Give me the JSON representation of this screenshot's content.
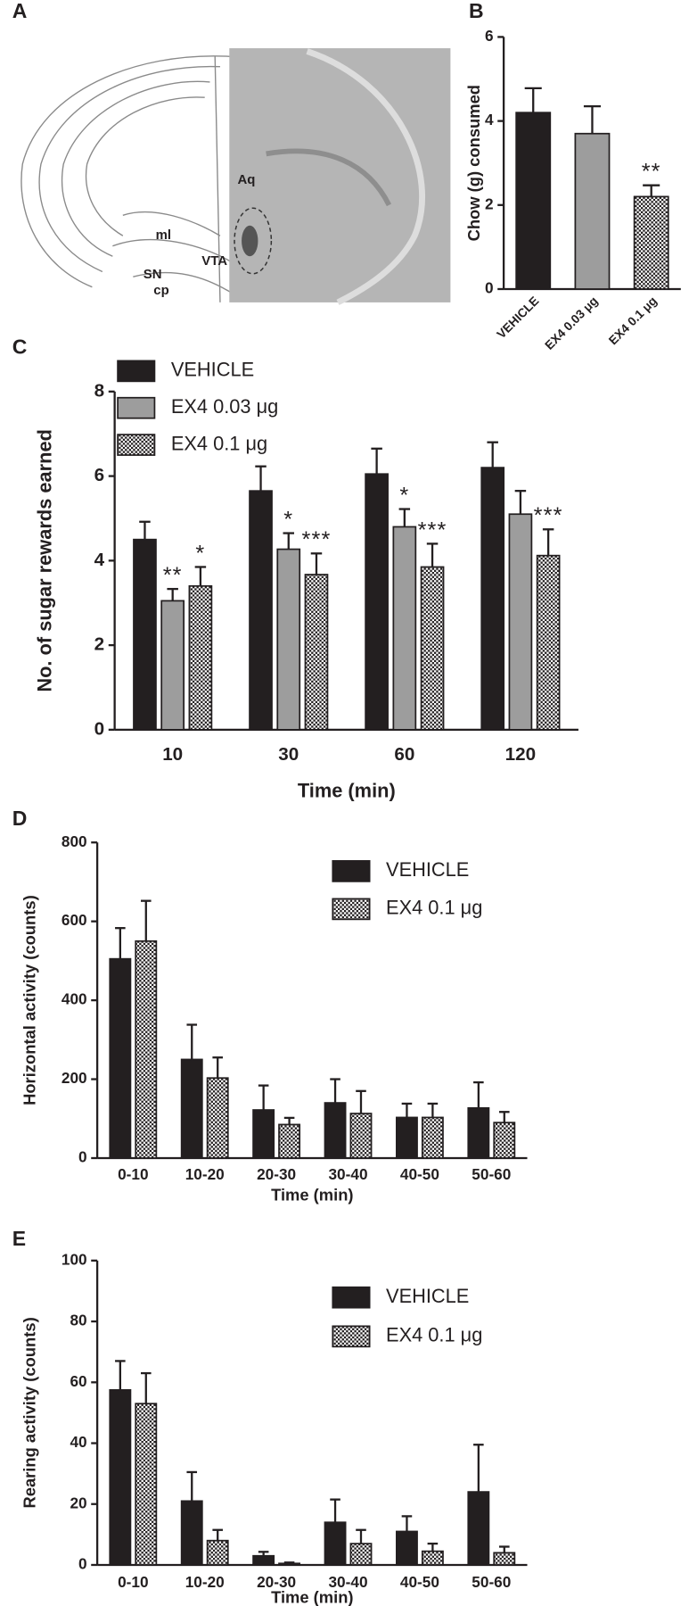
{
  "panel_a": {
    "panel": "A",
    "labels": [
      "Aq",
      "ml",
      "VTA",
      "SN",
      "cp"
    ]
  },
  "chart_data": [
    {
      "type": "bar",
      "panel": "B",
      "y_label": "Chow (g) consumed",
      "categories": [
        "VEHICLE",
        "EX4 0.03 μg",
        "EX4 0.1 μg"
      ],
      "values": [
        4.2,
        3.7,
        2.2
      ],
      "errors": [
        0.58,
        0.65,
        0.27
      ],
      "colors": [
        "#231f20",
        "#9d9d9d",
        "#ffffff"
      ],
      "patterns": [
        null,
        null,
        "checker"
      ],
      "annotations": [
        null,
        null,
        "**"
      ],
      "ylim": [
        0,
        6
      ],
      "yticks": [
        0,
        2,
        4,
        6
      ]
    },
    {
      "type": "bar",
      "panel": "C",
      "y_label": "No. of sugar rewards earned",
      "x_label": "Time (min)",
      "categories": [
        "10",
        "30",
        "60",
        "120"
      ],
      "legend": "upper-left",
      "series": [
        {
          "name": "VEHICLE",
          "color": "#231f20",
          "pattern": null,
          "values": [
            4.5,
            5.65,
            6.05,
            6.2
          ],
          "errors": [
            0.42,
            0.58,
            0.6,
            0.6
          ],
          "annotations": [
            null,
            null,
            null,
            null
          ]
        },
        {
          "name": "EX4 0.03 μg",
          "color": "#9d9d9d",
          "pattern": null,
          "values": [
            3.05,
            4.27,
            4.8,
            5.1
          ],
          "errors": [
            0.28,
            0.38,
            0.42,
            0.55
          ],
          "annotations": [
            "**",
            "*",
            "*",
            null
          ]
        },
        {
          "name": "EX4 0.1 μg",
          "color": "#ffffff",
          "pattern": "checker",
          "values": [
            3.4,
            3.67,
            3.85,
            4.12
          ],
          "errors": [
            0.45,
            0.5,
            0.55,
            0.62
          ],
          "annotations": [
            "*",
            "***",
            "***",
            "***"
          ]
        }
      ],
      "ylim": [
        0,
        8
      ],
      "yticks": [
        0,
        2,
        4,
        6,
        8
      ]
    },
    {
      "type": "bar",
      "panel": "D",
      "y_label": "Horizontal activity (counts)",
      "x_label": "Time (min)",
      "categories": [
        "0-10",
        "10-20",
        "20-30",
        "30-40",
        "40-50",
        "50-60"
      ],
      "legend": "upper-right",
      "series": [
        {
          "name": "VEHICLE",
          "color": "#231f20",
          "pattern": null,
          "values": [
            505,
            250,
            122,
            140,
            103,
            127
          ],
          "errors": [
            78,
            88,
            62,
            60,
            35,
            65
          ]
        },
        {
          "name": "EX4 0.1 μg",
          "color": "#ffffff",
          "pattern": "checker",
          "values": [
            550,
            203,
            85,
            113,
            103,
            90
          ],
          "errors": [
            102,
            52,
            17,
            57,
            35,
            27
          ]
        }
      ],
      "ylim": [
        0,
        800
      ],
      "yticks": [
        0,
        200,
        400,
        600,
        800
      ]
    },
    {
      "type": "bar",
      "panel": "E",
      "y_label": "Rearing activity (counts)",
      "x_label": "Time (min)",
      "categories": [
        "0-10",
        "10-20",
        "20-30",
        "30-40",
        "40-50",
        "50-60"
      ],
      "legend": "upper-right",
      "series": [
        {
          "name": "VEHICLE",
          "color": "#231f20",
          "pattern": null,
          "values": [
            57.5,
            21,
            3,
            14,
            11,
            24
          ],
          "errors": [
            9.5,
            9.5,
            1.3,
            7.5,
            5,
            15.5
          ]
        },
        {
          "name": "EX4 0.1 μg",
          "color": "#ffffff",
          "pattern": "checker",
          "values": [
            53,
            8,
            0.5,
            7,
            4.5,
            4
          ],
          "errors": [
            10,
            3.5,
            0.3,
            4.5,
            2.5,
            2
          ]
        }
      ],
      "ylim": [
        0,
        100
      ],
      "yticks": [
        0,
        20,
        40,
        60,
        80,
        100
      ]
    }
  ]
}
